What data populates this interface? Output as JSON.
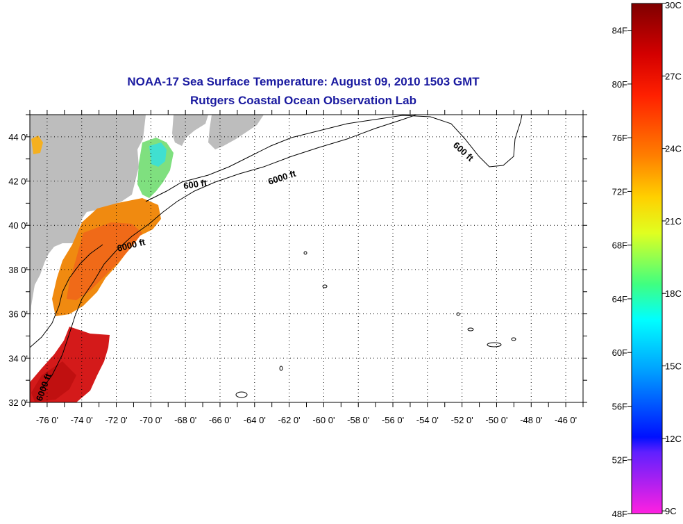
{
  "title": "NOAA-17 Sea Surface Temperature:  August 09, 2010 1503 GMT",
  "subtitle": "Rutgers Coastal Ocean Observation Lab",
  "map": {
    "lon_range": [
      -77,
      -45
    ],
    "lat_range": [
      32,
      45
    ],
    "lon_ticks": [
      "-76 0'",
      "-74 0'",
      "-72 0'",
      "-70 0'",
      "-68 0'",
      "-66 0'",
      "-64 0'",
      "-62 0'",
      "-60 0'",
      "-58 0'",
      "-56 0'",
      "-54 0'",
      "-52 0'",
      "-50 0'",
      "-48 0'",
      "-46 0'"
    ],
    "lat_ticks": [
      "32 0'",
      "34 0'",
      "36 0'",
      "38 0'",
      "40 0'",
      "42 0'",
      "44 0'"
    ],
    "grid": "dotted",
    "contour_labels": [
      "600 ft",
      "6000 ft",
      "6000 ft",
      "600 ft",
      "6000 ft"
    ],
    "land_color": "#bdbdbd"
  },
  "colorbar": {
    "fahrenheit": [
      "84F",
      "80F",
      "76F",
      "72F",
      "68F",
      "64F",
      "60F",
      "56F",
      "52F",
      "48F"
    ],
    "celsius": [
      "30C",
      "27C",
      "24C",
      "21C",
      "18C",
      "15C",
      "12C",
      "9C"
    ]
  }
}
